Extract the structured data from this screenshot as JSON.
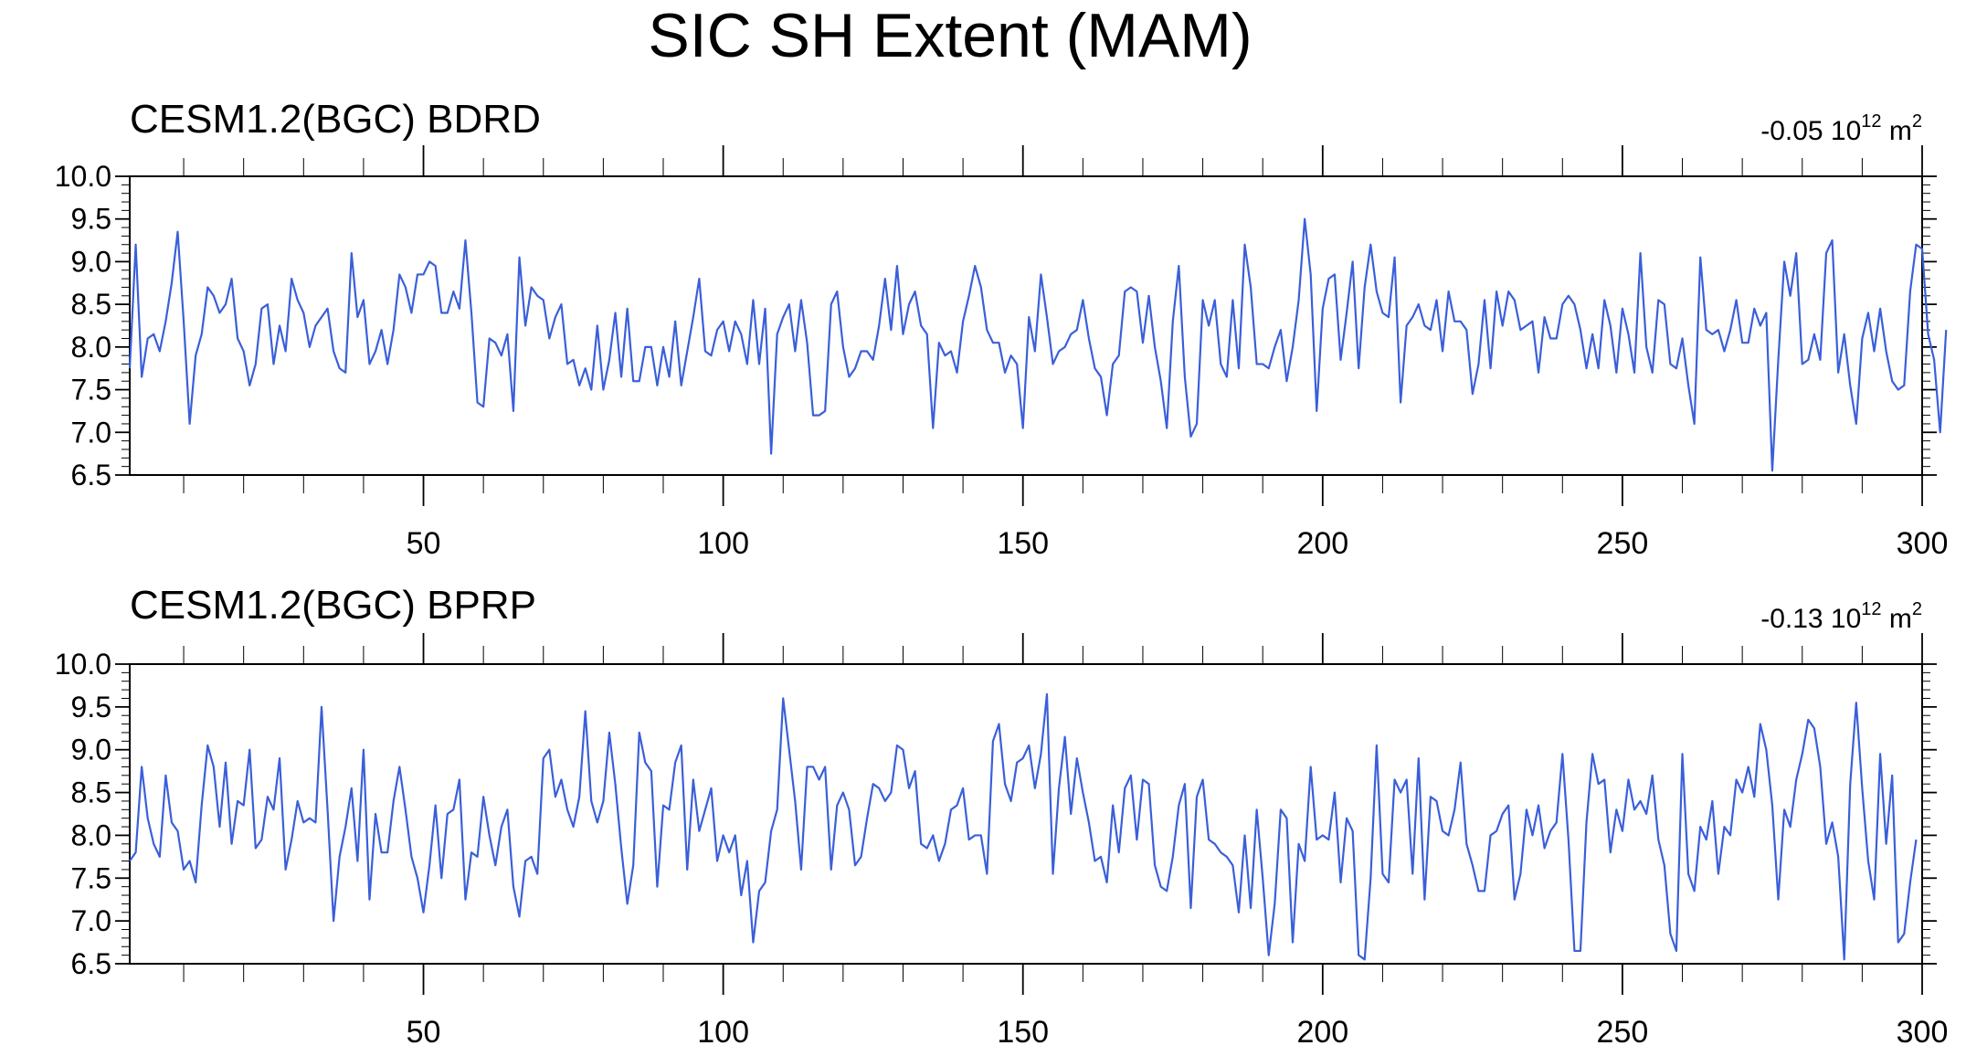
{
  "title": "SIC SH Extent (MAM)",
  "colors": {
    "line": "#3a5fd9",
    "frame": "#000000"
  },
  "chart_data": [
    {
      "type": "line",
      "subtitle": "CESM1.2(BGC) BDRD",
      "annotation": {
        "prefix": "-0.05 10",
        "sup1": "12",
        "mid": " m",
        "sup2": "2"
      },
      "xlim": [
        1,
        300
      ],
      "ylim": [
        6.5,
        10.0
      ],
      "yticks": [
        "10.0",
        "9.5",
        "9.0",
        "8.5",
        "8.0",
        "7.5",
        "7.0",
        "6.5"
      ],
      "xticks": [
        "50",
        "100",
        "150",
        "200",
        "250",
        "300"
      ],
      "series": [
        {
          "values": [
            7.75,
            9.2,
            7.65,
            8.1,
            8.15,
            7.95,
            8.3,
            8.75,
            9.35,
            8.3,
            7.1,
            7.9,
            8.15,
            8.7,
            8.6,
            8.4,
            8.5,
            8.8,
            8.1,
            7.95,
            7.55,
            7.8,
            8.45,
            8.5,
            7.8,
            8.25,
            7.95,
            8.8,
            8.55,
            8.4,
            8.0,
            8.25,
            8.35,
            8.45,
            7.95,
            7.75,
            7.7,
            9.1,
            8.35,
            8.55,
            7.8,
            7.95,
            8.2,
            7.8,
            8.2,
            8.85,
            8.7,
            8.4,
            8.85,
            8.85,
            9.0,
            8.95,
            8.4,
            8.4,
            8.65,
            8.45,
            9.25,
            8.4,
            7.35,
            7.3,
            8.1,
            8.05,
            7.9,
            8.15,
            7.25,
            9.05,
            8.25,
            8.7,
            8.6,
            8.55,
            8.1,
            8.35,
            8.5,
            7.8,
            7.85,
            7.55,
            7.75,
            7.5,
            8.25,
            7.5,
            7.85,
            8.4,
            7.65,
            8.45,
            7.6,
            7.6,
            8.0,
            8.0,
            7.55,
            8.0,
            7.65,
            8.3,
            7.55,
            7.95,
            8.35,
            8.8,
            7.95,
            7.9,
            8.2,
            8.3,
            7.95,
            8.3,
            8.15,
            7.8,
            8.55,
            7.8,
            8.45,
            6.75,
            8.15,
            8.35,
            8.5,
            7.95,
            8.55,
            8.05,
            7.2,
            7.2,
            7.25,
            8.5,
            8.65,
            8.0,
            7.65,
            7.75,
            7.95,
            7.95,
            7.85,
            8.25,
            8.8,
            8.2,
            8.95,
            8.15,
            8.5,
            8.65,
            8.25,
            8.15,
            7.05,
            8.05,
            7.9,
            7.95,
            7.7,
            8.3,
            8.6,
            8.95,
            8.7,
            8.2,
            8.05,
            8.05,
            7.7,
            7.9,
            7.8,
            7.05,
            8.35,
            7.95,
            8.85,
            8.35,
            7.8,
            7.95,
            8.0,
            8.15,
            8.2,
            8.55,
            8.1,
            7.75,
            7.65,
            7.2,
            7.8,
            7.9,
            8.65,
            8.7,
            8.65,
            8.05,
            8.6,
            8.0,
            7.6,
            7.05,
            8.3,
            8.95,
            7.65,
            6.95,
            7.1,
            8.55,
            8.25,
            8.55,
            7.8,
            7.65,
            8.55,
            7.75,
            9.2,
            8.7,
            7.8,
            7.8,
            7.75,
            8.0,
            8.2,
            7.6,
            8.0,
            8.55,
            9.5,
            8.85,
            7.25,
            8.45,
            8.8,
            8.85,
            7.85,
            8.4,
            9.0,
            7.75,
            8.7,
            9.2,
            8.65,
            8.4,
            8.35,
            9.05,
            7.35,
            8.25,
            8.35,
            8.5,
            8.25,
            8.2,
            8.55,
            7.95,
            8.65,
            8.3,
            8.3,
            8.2,
            7.45,
            7.8,
            8.55,
            7.75,
            8.65,
            8.25,
            8.65,
            8.55,
            8.2,
            8.25,
            8.3,
            7.7,
            8.35,
            8.1,
            8.1,
            8.5,
            8.6,
            8.5,
            8.2,
            7.75,
            8.15,
            7.75,
            8.55,
            8.25,
            7.7,
            8.45,
            8.15,
            7.7,
            9.1,
            8.0,
            7.7,
            8.55,
            8.5,
            7.8,
            7.75,
            8.1,
            7.55,
            7.1,
            9.05,
            8.2,
            8.15,
            8.2,
            7.95,
            8.2,
            8.55,
            8.05,
            8.05,
            8.45,
            8.25,
            8.4,
            6.55,
            7.85,
            9.0,
            8.6,
            9.1,
            7.8,
            7.85,
            8.15,
            7.85,
            9.1,
            9.25,
            7.7,
            8.15,
            7.55,
            7.1,
            8.1,
            8.4,
            7.95,
            8.45,
            7.95,
            7.6,
            7.5,
            7.55,
            8.65,
            9.2,
            9.15,
            8.15,
            7.85,
            7.0,
            8.2
          ]
        }
      ]
    },
    {
      "type": "line",
      "subtitle": "CESM1.2(BGC) BPRP",
      "annotation": {
        "prefix": "-0.13 10",
        "sup1": "12",
        "mid": " m",
        "sup2": "2"
      },
      "xlim": [
        1,
        300
      ],
      "ylim": [
        6.5,
        10.0
      ],
      "yticks": [
        "10.0",
        "9.5",
        "9.0",
        "8.5",
        "8.0",
        "7.5",
        "7.0",
        "6.5"
      ],
      "xticks": [
        "50",
        "100",
        "150",
        "200",
        "250",
        "300"
      ],
      "series": [
        {
          "values": [
            7.7,
            7.8,
            8.8,
            8.2,
            7.9,
            7.75,
            8.7,
            8.15,
            8.05,
            7.6,
            7.7,
            7.45,
            8.35,
            9.05,
            8.8,
            8.1,
            8.85,
            7.9,
            8.4,
            8.35,
            9.0,
            7.85,
            7.95,
            8.45,
            8.3,
            8.9,
            7.6,
            7.95,
            8.4,
            8.15,
            8.2,
            8.15,
            9.5,
            8.3,
            7.0,
            7.75,
            8.1,
            8.55,
            7.7,
            9.0,
            7.25,
            8.25,
            7.8,
            7.8,
            8.4,
            8.8,
            8.3,
            7.75,
            7.5,
            7.1,
            7.65,
            8.35,
            7.5,
            8.25,
            8.3,
            8.65,
            7.25,
            7.8,
            7.75,
            8.45,
            8.0,
            7.65,
            8.1,
            8.3,
            7.4,
            7.05,
            7.7,
            7.75,
            7.55,
            8.9,
            9.0,
            8.45,
            8.65,
            8.3,
            8.1,
            8.45,
            9.45,
            8.4,
            8.15,
            8.4,
            9.2,
            8.6,
            7.85,
            7.2,
            7.65,
            9.2,
            8.85,
            8.75,
            7.4,
            8.35,
            8.3,
            8.85,
            9.05,
            7.6,
            8.65,
            8.05,
            8.3,
            8.55,
            7.7,
            8.0,
            7.8,
            8.0,
            7.3,
            7.7,
            6.75,
            7.35,
            7.45,
            8.05,
            8.3,
            9.6,
            9.0,
            8.4,
            7.6,
            8.8,
            8.8,
            8.65,
            8.8,
            7.6,
            8.35,
            8.5,
            8.3,
            7.65,
            7.75,
            8.2,
            8.6,
            8.55,
            8.4,
            8.5,
            9.05,
            9.0,
            8.55,
            8.75,
            7.9,
            7.85,
            8.0,
            7.7,
            7.9,
            8.3,
            8.35,
            8.55,
            7.95,
            8.0,
            8.0,
            7.55,
            9.1,
            9.3,
            8.6,
            8.4,
            8.85,
            8.9,
            9.05,
            8.55,
            8.95,
            9.65,
            7.55,
            8.55,
            9.15,
            8.25,
            8.9,
            8.5,
            8.15,
            7.7,
            7.75,
            7.45,
            8.35,
            7.8,
            8.55,
            8.7,
            7.95,
            8.65,
            8.6,
            7.65,
            7.4,
            7.35,
            7.75,
            8.35,
            8.6,
            7.15,
            8.45,
            8.65,
            7.95,
            7.9,
            7.8,
            7.75,
            7.65,
            7.1,
            8.0,
            7.15,
            8.3,
            7.5,
            6.6,
            7.2,
            8.3,
            8.2,
            6.75,
            7.9,
            7.7,
            8.8,
            7.95,
            8.0,
            7.95,
            8.5,
            7.45,
            8.2,
            8.05,
            6.6,
            6.55,
            7.5,
            9.05,
            7.55,
            7.45,
            8.65,
            8.5,
            8.65,
            7.55,
            8.9,
            7.25,
            8.45,
            8.4,
            8.05,
            8.0,
            8.3,
            8.85,
            7.9,
            7.65,
            7.35,
            7.35,
            8.0,
            8.05,
            8.25,
            8.35,
            7.25,
            7.55,
            8.3,
            8.0,
            8.35,
            7.85,
            8.05,
            8.15,
            8.95,
            7.95,
            6.65,
            6.65,
            8.15,
            8.95,
            8.6,
            8.65,
            7.8,
            8.3,
            8.05,
            8.65,
            8.3,
            8.4,
            8.25,
            8.7,
            7.95,
            7.65,
            6.85,
            6.65,
            8.95,
            7.55,
            7.35,
            8.1,
            7.95,
            8.4,
            7.55,
            8.1,
            8.0,
            8.65,
            8.5,
            8.8,
            8.45,
            9.3,
            9.0,
            8.35,
            7.25,
            8.3,
            8.1,
            8.65,
            8.95,
            9.35,
            9.25,
            8.8,
            7.9,
            8.15,
            7.75,
            6.55,
            8.6,
            9.55,
            8.55,
            7.7,
            7.25,
            8.95,
            7.9,
            8.7,
            6.75,
            6.85,
            7.45,
            7.95
          ]
        }
      ]
    }
  ]
}
